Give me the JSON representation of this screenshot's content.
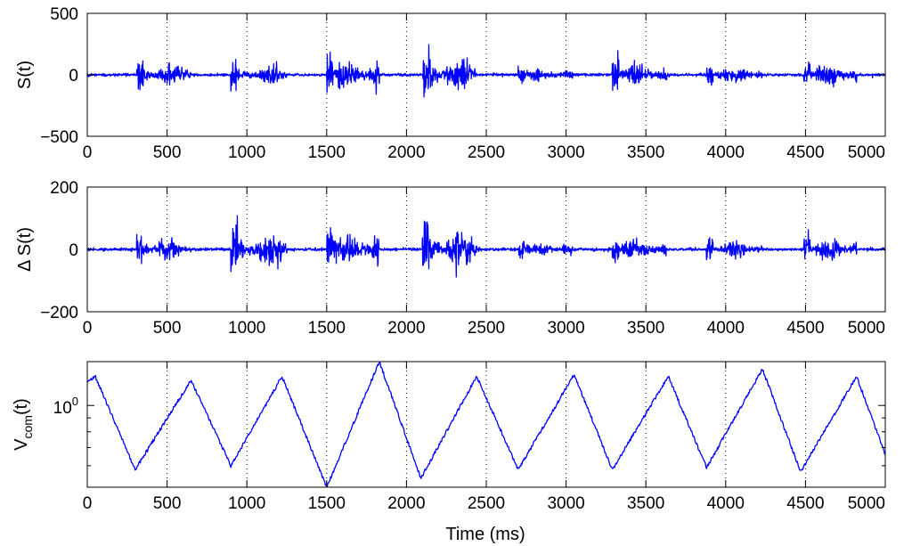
{
  "chart_data": [
    {
      "type": "line",
      "ylabel": "S(t)",
      "xlabel": "",
      "xlim": [
        0,
        5000
      ],
      "ylim": [
        -500,
        500
      ],
      "x_ticks": [
        0,
        500,
        1000,
        1500,
        2000,
        2500,
        3000,
        3500,
        4000,
        4500,
        5000
      ],
      "y_ticks": [
        -500,
        0,
        500
      ],
      "y_tick_labels": [
        "−500",
        "0",
        "500"
      ],
      "grid": "x-only, dotted",
      "series_color": "#0000ff",
      "signal": {
        "sampling_ms": 2,
        "baseline_noise": 10,
        "bursts": [
          {
            "start": 310,
            "end": 650,
            "amplitude": 200
          },
          {
            "start": 900,
            "end": 1250,
            "amplitude": 170
          },
          {
            "start": 1500,
            "end": 1830,
            "amplitude": 240
          },
          {
            "start": 2100,
            "end": 2440,
            "amplitude": 270
          },
          {
            "start": 2700,
            "end": 3040,
            "amplitude": 110
          },
          {
            "start": 3290,
            "end": 3630,
            "amplitude": 230
          },
          {
            "start": 3880,
            "end": 4230,
            "amplitude": 150
          },
          {
            "start": 4490,
            "end": 4820,
            "amplitude": 180
          }
        ]
      }
    },
    {
      "type": "line",
      "ylabel": "Δ S(t)",
      "xlabel": "",
      "xlim": [
        0,
        5000
      ],
      "ylim": [
        -200,
        200
      ],
      "x_ticks": [
        0,
        500,
        1000,
        1500,
        2000,
        2500,
        3000,
        3500,
        4000,
        4500,
        5000
      ],
      "y_ticks": [
        -200,
        0,
        200
      ],
      "y_tick_labels": [
        "−200",
        "0",
        "200"
      ],
      "grid": "x-only, dotted",
      "series_color": "#0000ff",
      "signal": {
        "sampling_ms": 2,
        "baseline_noise": 4,
        "bursts": [
          {
            "start": 310,
            "end": 650,
            "amplitude": 85
          },
          {
            "start": 900,
            "end": 1250,
            "amplitude": 115
          },
          {
            "start": 1500,
            "end": 1830,
            "amplitude": 125
          },
          {
            "start": 2100,
            "end": 2440,
            "amplitude": 130
          },
          {
            "start": 2700,
            "end": 3040,
            "amplitude": 50
          },
          {
            "start": 3290,
            "end": 3630,
            "amplitude": 70
          },
          {
            "start": 3880,
            "end": 4230,
            "amplitude": 60
          },
          {
            "start": 4490,
            "end": 4820,
            "amplitude": 70
          }
        ]
      }
    },
    {
      "type": "line",
      "ylabel_main": "V",
      "ylabel_sub": "com",
      "ylabel_tail": "(t)",
      "xlabel": "Time (ms)",
      "xlim": [
        0,
        5000
      ],
      "ylim": [
        0.5,
        1.45
      ],
      "yscale": "log",
      "x_ticks": [
        0,
        500,
        1000,
        1500,
        2000,
        2500,
        3000,
        3500,
        4000,
        4500,
        5000
      ],
      "y_ticks": [
        1
      ],
      "y_tick_label_base": "10",
      "y_tick_label_exp": "0",
      "grid": "x-only, dotted",
      "series_color": "#0000ff",
      "series": {
        "x": [
          0,
          50,
          300,
          650,
          900,
          1220,
          1500,
          1830,
          2090,
          2440,
          2700,
          3050,
          3290,
          3640,
          3880,
          4230,
          4470,
          4820,
          5000
        ],
        "y": [
          1.22,
          1.28,
          0.58,
          1.24,
          0.6,
          1.28,
          0.5,
          1.45,
          0.54,
          1.28,
          0.58,
          1.3,
          0.58,
          1.28,
          0.59,
          1.36,
          0.57,
          1.28,
          0.66
        ]
      }
    }
  ]
}
